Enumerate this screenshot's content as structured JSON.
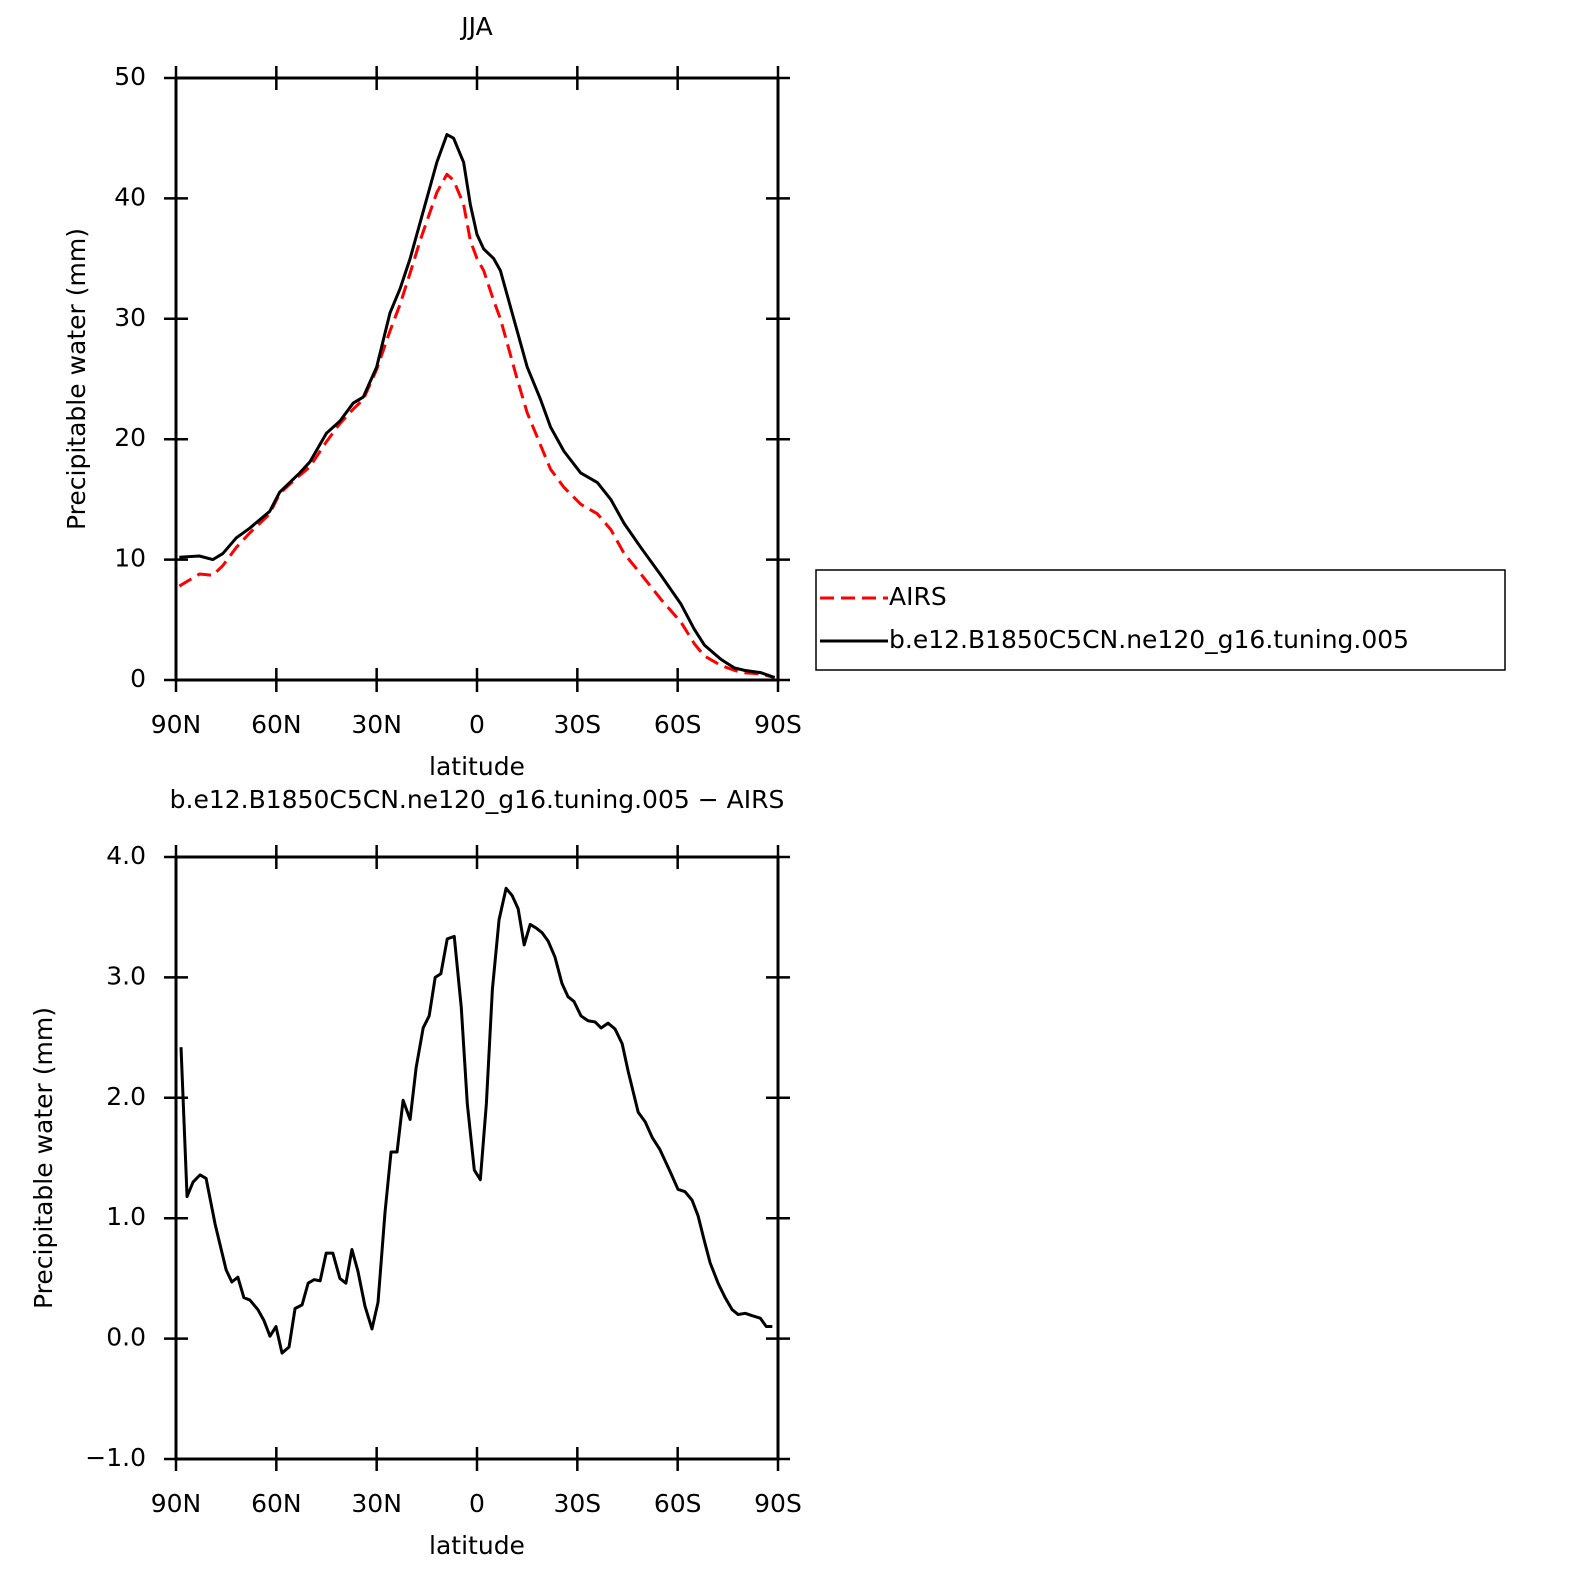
{
  "chart_data": [
    {
      "type": "line",
      "title": "JJA",
      "xlabel": "latitude",
      "ylabel": "Precipitable water (mm)",
      "xlim": [
        90,
        -90
      ],
      "xticks": [
        {
          "value": 90,
          "label": "90N"
        },
        {
          "value": 60,
          "label": "60N"
        },
        {
          "value": 30,
          "label": "30N"
        },
        0,
        {
          "value": -30,
          "label": "30S"
        },
        {
          "value": -60,
          "label": "60S"
        },
        {
          "value": -90,
          "label": "90S"
        }
      ],
      "ylim": [
        0,
        50
      ],
      "yticks": [
        0,
        10,
        20,
        30,
        40,
        50
      ],
      "legend": "right",
      "x": [
        89,
        83,
        79,
        76,
        72,
        68,
        62,
        59,
        53,
        50,
        45,
        41,
        37,
        34,
        30,
        26,
        23,
        20,
        17,
        12,
        9,
        7,
        4,
        2,
        0,
        -2,
        -5,
        -7,
        -9,
        -12,
        -15,
        -19,
        -22,
        -26,
        -31,
        -36,
        -40,
        -44,
        -49,
        -55,
        -61,
        -65,
        -68,
        -73,
        -77,
        -80,
        -85,
        -89
      ],
      "series": [
        {
          "name": "AIRS",
          "color": "#ff0000",
          "dashed": true,
          "values": [
            7.8,
            8.8,
            8.7,
            9.5,
            11.0,
            12.2,
            13.8,
            15.5,
            17.0,
            17.7,
            19.8,
            21.3,
            22.5,
            23.3,
            25.8,
            29.0,
            31.2,
            33.8,
            36.5,
            40.5,
            42.0,
            41.5,
            39.5,
            36.5,
            35.0,
            34.0,
            31.5,
            30.0,
            28.0,
            25.0,
            22.2,
            19.5,
            17.5,
            16.0,
            14.6,
            13.8,
            12.5,
            10.5,
            8.8,
            6.7,
            4.8,
            3.0,
            2.0,
            1.2,
            0.8,
            0.6,
            0.5,
            0.2
          ]
        },
        {
          "name": "b.e12.B1850C5CN.ne120_g16.tuning.005",
          "color": "#000000",
          "dashed": false,
          "values": [
            10.2,
            10.3,
            10.0,
            10.5,
            11.8,
            12.6,
            14.0,
            15.6,
            17.2,
            18.1,
            20.5,
            21.5,
            23.0,
            23.5,
            26.0,
            30.5,
            32.5,
            35.0,
            38.0,
            43.0,
            45.3,
            45.0,
            43.0,
            39.5,
            37.0,
            35.8,
            35.0,
            34.0,
            32.0,
            29.0,
            26.0,
            23.3,
            21.0,
            19.0,
            17.2,
            16.4,
            15.0,
            13.0,
            11.0,
            8.7,
            6.3,
            4.2,
            2.9,
            1.7,
            1.0,
            0.8,
            0.6,
            0.2
          ]
        }
      ]
    },
    {
      "type": "line",
      "title": "b.e12.B1850C5CN.ne120_g16.tuning.005 − AIRS",
      "xlabel": "latitude",
      "ylabel": "Precipitable water (mm)",
      "xlim": [
        90,
        -90
      ],
      "xticks": [
        {
          "value": 90,
          "label": "90N"
        },
        {
          "value": 60,
          "label": "60N"
        },
        {
          "value": 30,
          "label": "30N"
        },
        0,
        {
          "value": -30,
          "label": "30S"
        },
        {
          "value": -60,
          "label": "60S"
        },
        {
          "value": -90,
          "label": "90S"
        }
      ],
      "ylim": [
        -1,
        4
      ],
      "yticks": [
        {
          "value": -1,
          "label": "−1.0"
        },
        {
          "value": 0,
          "label": "0.0"
        },
        {
          "value": 1,
          "label": "1.0"
        },
        {
          "value": 2,
          "label": "2.0"
        },
        {
          "value": 3,
          "label": "3.0"
        },
        {
          "value": 4,
          "label": "4.0"
        }
      ],
      "x": [
        88.5,
        86.7,
        84.9,
        82.8,
        81.0,
        78.3,
        75.0,
        73.3,
        71.5,
        69.7,
        67.9,
        65.5,
        63.7,
        61.9,
        60.1,
        58.3,
        56.2,
        54.4,
        52.3,
        50.5,
        48.7,
        46.9,
        45.1,
        43.1,
        41.0,
        39.2,
        37.4,
        35.6,
        33.5,
        31.4,
        29.6,
        27.5,
        25.7,
        23.9,
        22.1,
        20.0,
        18.2,
        16.1,
        14.3,
        12.5,
        10.8,
        8.9,
        6.8,
        4.7,
        2.9,
        0.8,
        -1.0,
        -2.8,
        -4.6,
        -6.6,
        -8.7,
        -10.5,
        -12.3,
        -14.1,
        -15.9,
        -17.7,
        -19.5,
        -21.3,
        -23.3,
        -25.4,
        -27.2,
        -29.0,
        -31.1,
        -33.2,
        -35.3,
        -37.1,
        -39.2,
        -41.3,
        -43.4,
        -45.2,
        -48.2,
        -50.3,
        -52.4,
        -54.7,
        -57.7,
        -60.1,
        -62.2,
        -64.3,
        -66.1,
        -67.9,
        -69.7,
        -72.1,
        -74.2,
        -76.3,
        -78.1,
        -80.2,
        -82.3,
        -84.7,
        -86.5,
        -88.3
      ],
      "series": [
        {
          "color": "#000000",
          "dashed": false,
          "values": [
            2.42,
            1.18,
            1.3,
            1.36,
            1.33,
            0.95,
            0.57,
            0.47,
            0.51,
            0.34,
            0.32,
            0.24,
            0.15,
            0.02,
            0.1,
            -0.12,
            -0.07,
            0.25,
            0.28,
            0.46,
            0.49,
            0.48,
            0.71,
            0.71,
            0.5,
            0.46,
            0.74,
            0.56,
            0.27,
            0.08,
            0.3,
            1.05,
            1.55,
            1.55,
            1.98,
            1.82,
            2.25,
            2.58,
            2.68,
            3.0,
            3.03,
            3.32,
            3.34,
            2.75,
            1.95,
            1.4,
            1.32,
            1.95,
            2.9,
            3.48,
            3.74,
            3.68,
            3.57,
            3.27,
            3.44,
            3.41,
            3.37,
            3.3,
            3.17,
            2.95,
            2.84,
            2.8,
            2.68,
            2.64,
            2.63,
            2.58,
            2.62,
            2.57,
            2.45,
            2.22,
            1.88,
            1.8,
            1.67,
            1.57,
            1.39,
            1.24,
            1.22,
            1.15,
            1.02,
            0.82,
            0.63,
            0.46,
            0.34,
            0.24,
            0.2,
            0.21,
            0.19,
            0.17,
            0.1,
            0.1
          ]
        }
      ]
    }
  ]
}
